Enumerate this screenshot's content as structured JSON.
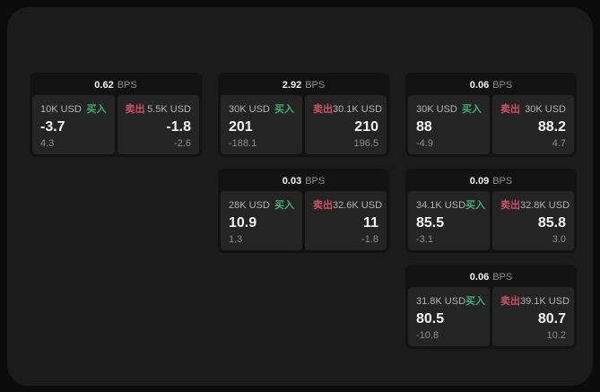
{
  "colors": {
    "page_bg": "#0b0b0b",
    "panel_bg": "#1b1b1b",
    "card_bg": "#121212",
    "tile_bg": "#242424",
    "text_primary": "#f2f2f2",
    "text_muted": "#b3b3b3",
    "text_dim": "#8d8d8d",
    "buy_green": "#3fae6e",
    "sell_red": "#ce5065"
  },
  "labels": {
    "bps_unit": "BPS",
    "buy": "买入",
    "sell": "卖出"
  },
  "cards": [
    {
      "bps": "0.62",
      "row": 1,
      "col": 1,
      "buy": {
        "amount": "10K USD",
        "price": "-3.7",
        "delta": "4.3"
      },
      "sell": {
        "amount": "5.5K USD",
        "price": "-1.8",
        "delta": "-2.6"
      }
    },
    {
      "bps": "2.92",
      "row": 1,
      "col": 2,
      "buy": {
        "amount": "30K USD",
        "price": "201",
        "delta": "-188.1"
      },
      "sell": {
        "amount": "30.1K USD",
        "price": "210",
        "delta": "196.5"
      }
    },
    {
      "bps": "0.06",
      "row": 1,
      "col": 3,
      "buy": {
        "amount": "30K USD",
        "price": "88",
        "delta": "-4.9"
      },
      "sell": {
        "amount": "30K USD",
        "price": "88.2",
        "delta": "4.7"
      }
    },
    {
      "bps": "0.03",
      "row": 2,
      "col": 2,
      "buy": {
        "amount": "28K USD",
        "price": "10.9",
        "delta": "1.3"
      },
      "sell": {
        "amount": "32.6K USD",
        "price": "11",
        "delta": "-1.8"
      }
    },
    {
      "bps": "0.09",
      "row": 2,
      "col": 3,
      "buy": {
        "amount": "34.1K USD",
        "price": "85.5",
        "delta": "-3.1"
      },
      "sell": {
        "amount": "32.8K USD",
        "price": "85.8",
        "delta": "3.0"
      }
    },
    {
      "bps": "0.06",
      "row": 3,
      "col": 3,
      "buy": {
        "amount": "31.8K USD",
        "price": "80.5",
        "delta": "-10.8"
      },
      "sell": {
        "amount": "39.1K USD",
        "price": "80.7",
        "delta": "10.2"
      }
    }
  ]
}
